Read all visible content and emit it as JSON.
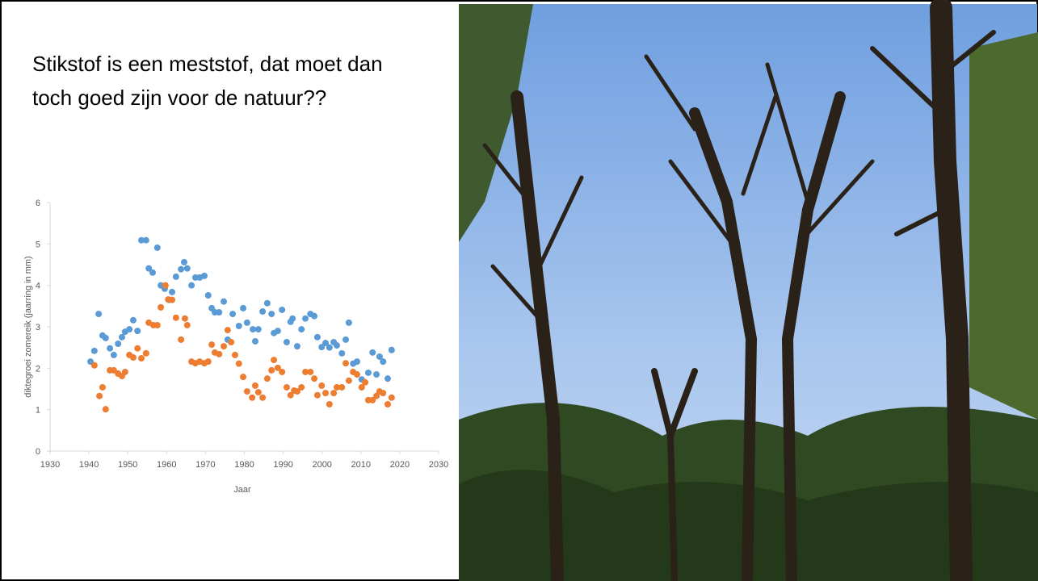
{
  "slide": {
    "title_lines": [
      "Stikstof is een meststof, dat moet dan",
      "toch goed zijn voor de natuur??"
    ]
  },
  "chart_data": {
    "type": "scatter",
    "x_label": "Jaar",
    "y_label": "diktegroei zomereik (jaarring in mm)",
    "xlim": [
      1930,
      2030
    ],
    "xticks": [
      1930,
      1940,
      1950,
      1960,
      1970,
      1980,
      1990,
      2000,
      2010,
      2020,
      2030
    ],
    "ylim": [
      0,
      6
    ],
    "yticks": [
      0,
      1,
      2,
      3,
      4,
      5,
      6
    ],
    "series": [
      {
        "color": "#5b9bd5",
        "x": [
          1940.4,
          1941.4,
          1942.5,
          1943.5,
          1944.3,
          1945.4,
          1946.4,
          1947.5,
          1948.5,
          1949.3,
          1950.4,
          1951.4,
          1952.5,
          1953.5,
          1954.7,
          1955.4,
          1956.4,
          1957.6,
          1958.5,
          1959.5,
          1960.6,
          1961.4,
          1962.4,
          1963.7,
          1964.5,
          1965.3,
          1966.4,
          1967.4,
          1968.5,
          1969.7,
          1970.7,
          1971.6,
          1972.4,
          1973.5,
          1974.7,
          1975.7,
          1977.0,
          1978.6,
          1979.7,
          1980.7,
          1982.2,
          1982.8,
          1983.6,
          1984.7,
          1985.9,
          1987.0,
          1987.6,
          1988.6,
          1989.7,
          1990.9,
          1991.9,
          1992.4,
          1993.6,
          1994.7,
          1995.7,
          1997.0,
          1998.0,
          1998.8,
          1999.9,
          2000.9,
          2001.9,
          2003.0,
          2003.8,
          2005.1,
          2006.1,
          2006.9,
          2008.0,
          2009.0,
          2010.2,
          2011.9,
          2013.0,
          2014.0,
          2014.8,
          2015.7,
          2016.9,
          2017.9
        ],
        "values": [
          2.16,
          2.42,
          3.31,
          2.79,
          2.73,
          2.48,
          2.32,
          2.59,
          2.75,
          2.88,
          2.94,
          3.16,
          2.9,
          5.09,
          5.09,
          4.41,
          4.31,
          4.91,
          4.0,
          3.92,
          3.65,
          3.84,
          4.21,
          4.39,
          4.56,
          4.41,
          4.0,
          4.19,
          4.19,
          4.23,
          3.76,
          3.45,
          3.35,
          3.35,
          3.61,
          2.69,
          3.31,
          3.02,
          3.45,
          3.1,
          2.94,
          2.65,
          2.94,
          3.37,
          3.57,
          3.31,
          2.85,
          2.9,
          3.41,
          2.63,
          3.12,
          3.2,
          2.53,
          2.94,
          3.2,
          3.31,
          3.26,
          2.75,
          2.51,
          2.61,
          2.5,
          2.63,
          2.55,
          2.36,
          2.69,
          3.1,
          2.11,
          2.16,
          1.73,
          1.89,
          2.38,
          1.85,
          2.28,
          2.16,
          1.75,
          2.44
        ]
      },
      {
        "color": "#ed7d31",
        "x": [
          1941.4,
          1942.7,
          1943.5,
          1944.3,
          1945.4,
          1946.4,
          1947.5,
          1948.5,
          1949.3,
          1950.4,
          1951.4,
          1952.5,
          1953.5,
          1954.7,
          1955.4,
          1956.6,
          1957.6,
          1958.5,
          1959.7,
          1960.4,
          1961.4,
          1962.4,
          1963.7,
          1964.7,
          1965.3,
          1966.4,
          1967.4,
          1968.5,
          1969.7,
          1970.7,
          1971.6,
          1972.4,
          1973.5,
          1974.7,
          1975.7,
          1976.6,
          1977.6,
          1978.6,
          1979.7,
          1980.7,
          1982.0,
          1982.8,
          1983.6,
          1984.7,
          1985.9,
          1987.0,
          1987.6,
          1988.6,
          1989.7,
          1990.9,
          1991.9,
          1992.8,
          1993.6,
          1994.7,
          1995.7,
          1997.0,
          1998.0,
          1998.8,
          1999.9,
          2000.9,
          2001.9,
          2003.0,
          2003.8,
          2005.1,
          2006.1,
          2006.9,
          2008.0,
          2009.0,
          2010.2,
          2011.1,
          2011.9,
          2013.0,
          2014.0,
          2014.8,
          2015.7,
          2016.9,
          2017.9
        ],
        "values": [
          2.07,
          1.33,
          1.54,
          1.01,
          1.95,
          1.95,
          1.87,
          1.81,
          1.91,
          2.32,
          2.26,
          2.48,
          2.24,
          2.36,
          3.1,
          3.04,
          3.04,
          3.47,
          4.0,
          3.66,
          3.65,
          3.22,
          2.69,
          3.2,
          3.04,
          2.16,
          2.12,
          2.16,
          2.12,
          2.16,
          2.57,
          2.38,
          2.34,
          2.53,
          2.92,
          2.63,
          2.32,
          2.11,
          1.79,
          1.44,
          1.29,
          1.58,
          1.42,
          1.29,
          1.75,
          1.95,
          2.2,
          2.01,
          1.91,
          1.54,
          1.35,
          1.46,
          1.44,
          1.54,
          1.91,
          1.91,
          1.75,
          1.35,
          1.58,
          1.4,
          1.13,
          1.4,
          1.54,
          1.54,
          2.12,
          1.7,
          1.91,
          1.85,
          1.54,
          1.66,
          1.23,
          1.23,
          1.33,
          1.44,
          1.4,
          1.13,
          1.29
        ]
      }
    ]
  }
}
